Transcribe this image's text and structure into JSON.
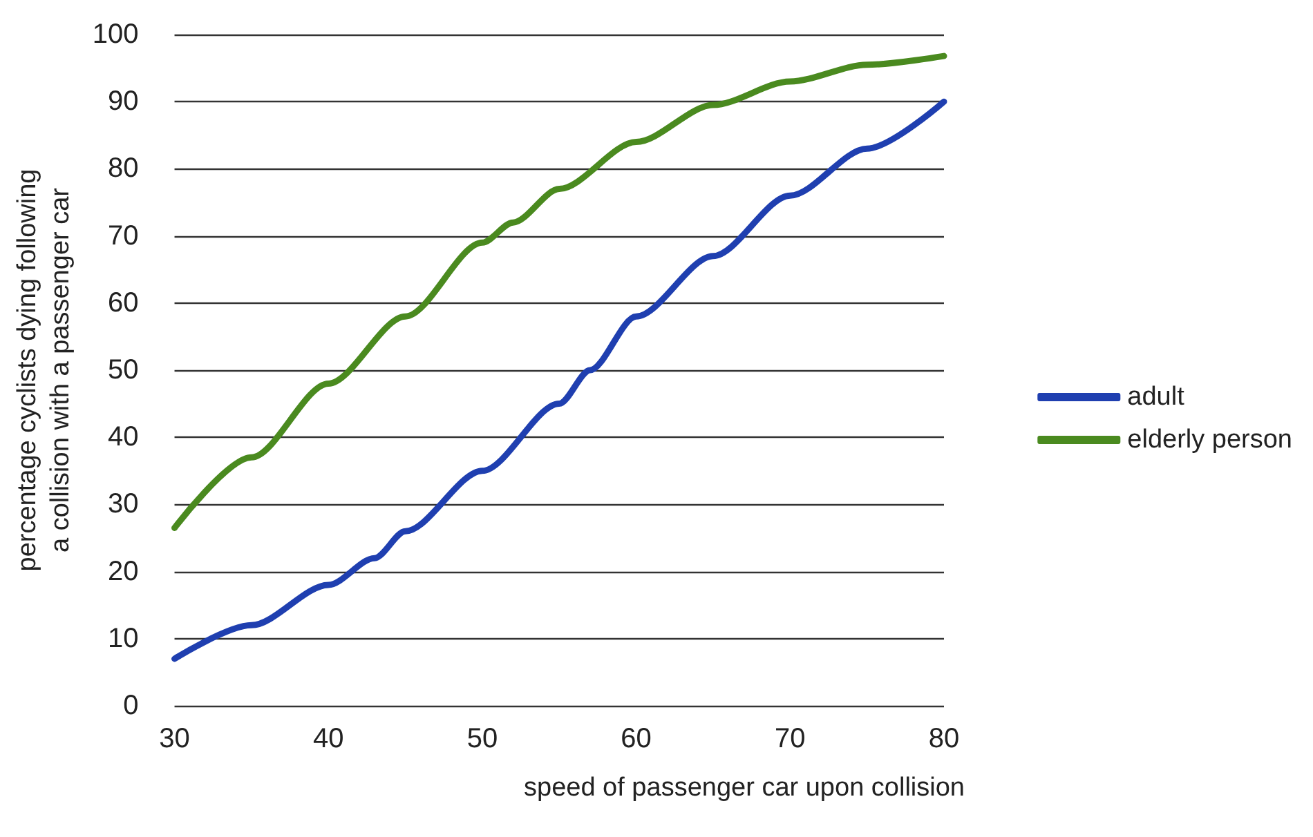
{
  "chart_data": {
    "type": "line",
    "xlabel": "speed of passenger car upon collision",
    "ylabel": "percentage cyclists dying following\na collision with a passenger car",
    "xlim": [
      30,
      80
    ],
    "xticks": [
      30,
      40,
      50,
      60,
      70,
      80
    ],
    "ylim": [
      0,
      100
    ],
    "yticks": [
      0,
      10,
      20,
      30,
      40,
      50,
      60,
      70,
      80,
      90,
      100
    ],
    "grid": "y",
    "legend": "right",
    "marker": "none",
    "line_style": "solid",
    "series": [
      {
        "name": "adult",
        "color": "#1f3fb0",
        "x": [
          30,
          35,
          40,
          43,
          45,
          50,
          55,
          57,
          60,
          65,
          70,
          75,
          80
        ],
        "values": [
          7,
          12,
          18,
          22,
          26,
          35,
          45,
          50,
          58,
          67,
          76,
          83,
          90
        ]
      },
      {
        "name": "elderly person",
        "color": "#4a8a1f",
        "x": [
          30,
          35,
          40,
          45,
          50,
          52,
          55,
          60,
          65,
          70,
          75,
          80
        ],
        "values": [
          26.5,
          37,
          48,
          58,
          69,
          72,
          77,
          84,
          89.5,
          93,
          95.5,
          96.8
        ]
      }
    ]
  }
}
